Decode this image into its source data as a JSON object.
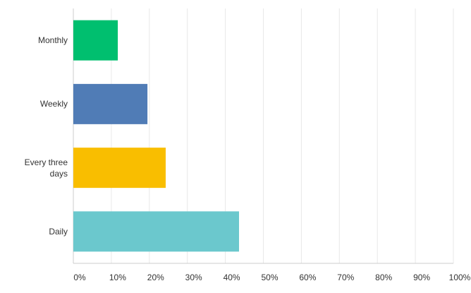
{
  "chart_data": {
    "type": "bar",
    "orientation": "horizontal",
    "categories": [
      "Monthly",
      "Weekly",
      "Every three days",
      "Daily"
    ],
    "values": [
      11.7,
      19.5,
      24.3,
      43.6
    ],
    "colors": [
      "#00bf6f",
      "#507cb6",
      "#f9be00",
      "#6bc8cd"
    ],
    "xlim": [
      0,
      100
    ],
    "xticks": [
      {
        "value": 0,
        "label": "0%"
      },
      {
        "value": 10,
        "label": "10%"
      },
      {
        "value": 20,
        "label": "20%"
      },
      {
        "value": 30,
        "label": "30%"
      },
      {
        "value": 40,
        "label": "40%"
      },
      {
        "value": 50,
        "label": "50%"
      },
      {
        "value": 60,
        "label": "60%"
      },
      {
        "value": 70,
        "label": "70%"
      },
      {
        "value": 80,
        "label": "80%"
      },
      {
        "value": 90,
        "label": "90%"
      },
      {
        "value": 100,
        "label": "100%"
      }
    ],
    "grid": true
  }
}
